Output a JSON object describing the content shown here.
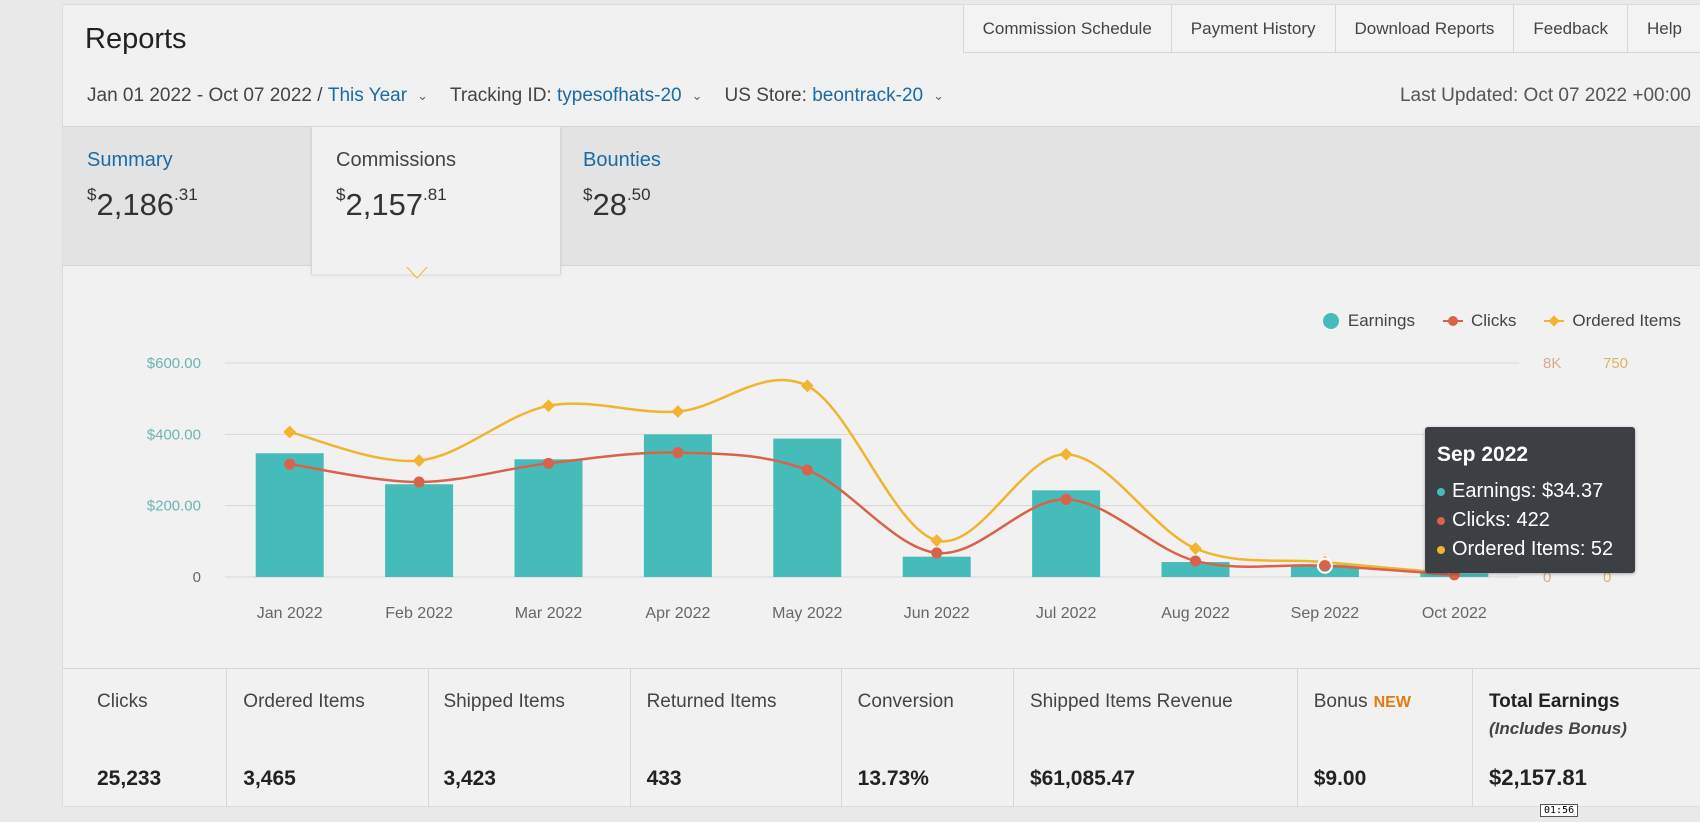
{
  "page": {
    "title": "Reports"
  },
  "topnav": [
    "Commission Schedule",
    "Payment History",
    "Download Reports",
    "Feedback",
    "Help"
  ],
  "filters": {
    "date_range": "Jan 01 2022 - Oct 07 2022 /",
    "period": "This Year",
    "tracking_label": "Tracking ID:",
    "tracking_id": "typesofhats-20",
    "store_label": "US Store:",
    "store_id": "beontrack-20"
  },
  "last_updated": "Last Updated: Oct 07 2022 +00:00",
  "tabs": [
    {
      "label": "Summary",
      "currency": "$",
      "whole": "2,186",
      "cents": ".31"
    },
    {
      "label": "Commissions",
      "currency": "$",
      "whole": "2,157",
      "cents": ".81"
    },
    {
      "label": "Bounties",
      "currency": "$",
      "whole": "28",
      "cents": ".50"
    }
  ],
  "legend": {
    "earnings": "Earnings",
    "clicks": "Clicks",
    "ordered": "Ordered Items"
  },
  "colors": {
    "earnings": "#45bcb9",
    "clicks": "#d9624a",
    "ordered": "#f1b42f",
    "link": "#1c6aa5",
    "new_badge": "#e47911"
  },
  "chart_data": {
    "type": "bar",
    "categories": [
      "Jan 2022",
      "Feb 2022",
      "Mar 2022",
      "Apr 2022",
      "May 2022",
      "Jun 2022",
      "Jul 2022",
      "Aug 2022",
      "Sep 2022",
      "Oct 2022"
    ],
    "series": [
      {
        "name": "Earnings",
        "type": "bar",
        "axis": "left",
        "values": [
          347,
          260,
          330,
          400,
          388,
          57,
          243,
          42,
          34.37,
          10
        ]
      },
      {
        "name": "Clicks",
        "type": "line",
        "axis": "right-1",
        "values": [
          4220,
          3550,
          4250,
          4650,
          4000,
          900,
          2900,
          600,
          422,
          80
        ]
      },
      {
        "name": "Ordered Items",
        "type": "line",
        "axis": "right-2",
        "values": [
          508,
          408,
          600,
          580,
          670,
          128,
          430,
          100,
          52,
          12
        ]
      }
    ],
    "axes": {
      "left": {
        "range": [
          0,
          600
        ],
        "ticks": [
          "0",
          "$200.00",
          "$400.00",
          "$600.00"
        ]
      },
      "right1": {
        "range": [
          0,
          8000
        ],
        "ticks": [
          "0",
          "3K",
          "5K",
          "8K"
        ]
      },
      "right2": {
        "range": [
          0,
          750
        ],
        "ticks": [
          "0",
          "250",
          "500",
          "750"
        ]
      }
    },
    "grid": true,
    "legend_position": "top-right"
  },
  "tooltip": {
    "title": "Sep 2022",
    "earnings": "Earnings: $34.37",
    "clicks": "Clicks: 422",
    "ordered": "Ordered Items: 52"
  },
  "stats": [
    {
      "label": "Clicks",
      "value": "25,233"
    },
    {
      "label": "Ordered Items",
      "value": "3,465"
    },
    {
      "label": "Shipped Items",
      "value": "3,423"
    },
    {
      "label": "Returned Items",
      "value": "433"
    },
    {
      "label": "Conversion",
      "value": "13.73%"
    },
    {
      "label": "Shipped Items Revenue",
      "value": "$61,085.47"
    },
    {
      "label": "Bonus",
      "badge": "NEW",
      "value": "$9.00"
    },
    {
      "label": "Total Earnings",
      "sub": "(Includes Bonus)",
      "value": "$2,157.81"
    }
  ],
  "video_timestamp": "01:56"
}
